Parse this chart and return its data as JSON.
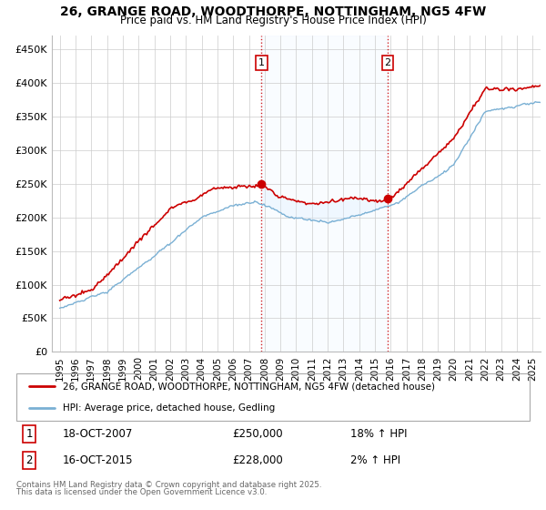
{
  "title": "26, GRANGE ROAD, WOODTHORPE, NOTTINGHAM, NG5 4FW",
  "subtitle": "Price paid vs. HM Land Registry's House Price Index (HPI)",
  "ylabel_ticks": [
    "£0",
    "£50K",
    "£100K",
    "£150K",
    "£200K",
    "£250K",
    "£300K",
    "£350K",
    "£400K",
    "£450K"
  ],
  "ytick_values": [
    0,
    50000,
    100000,
    150000,
    200000,
    250000,
    300000,
    350000,
    400000,
    450000
  ],
  "ylim": [
    0,
    470000
  ],
  "xlim_start": 1994.5,
  "xlim_end": 2025.5,
  "xticks": [
    1995,
    1996,
    1997,
    1998,
    1999,
    2000,
    2001,
    2002,
    2003,
    2004,
    2005,
    2006,
    2007,
    2008,
    2009,
    2010,
    2011,
    2012,
    2013,
    2014,
    2015,
    2016,
    2017,
    2018,
    2019,
    2020,
    2021,
    2022,
    2023,
    2024,
    2025
  ],
  "red_color": "#cc0000",
  "blue_color": "#7ab0d4",
  "shaded_color": "#ddeeff",
  "vline_color": "#cc0000",
  "vline_style": ":",
  "sale1_x": 2007.8,
  "sale1_y": 250000,
  "sale1_label": "1",
  "sale2_x": 2015.8,
  "sale2_y": 228000,
  "sale2_label": "2",
  "legend_line1": "26, GRANGE ROAD, WOODTHORPE, NOTTINGHAM, NG5 4FW (detached house)",
  "legend_line2": "HPI: Average price, detached house, Gedling",
  "footer_line1": "Contains HM Land Registry data © Crown copyright and database right 2025.",
  "footer_line2": "This data is licensed under the Open Government Licence v3.0.",
  "table_rows": [
    {
      "num": "1",
      "date": "18-OCT-2007",
      "price": "£250,000",
      "hpi": "18% ↑ HPI"
    },
    {
      "num": "2",
      "date": "16-OCT-2015",
      "price": "£228,000",
      "hpi": "2% ↑ HPI"
    }
  ],
  "background_color": "#ffffff",
  "plot_bg_color": "#ffffff"
}
